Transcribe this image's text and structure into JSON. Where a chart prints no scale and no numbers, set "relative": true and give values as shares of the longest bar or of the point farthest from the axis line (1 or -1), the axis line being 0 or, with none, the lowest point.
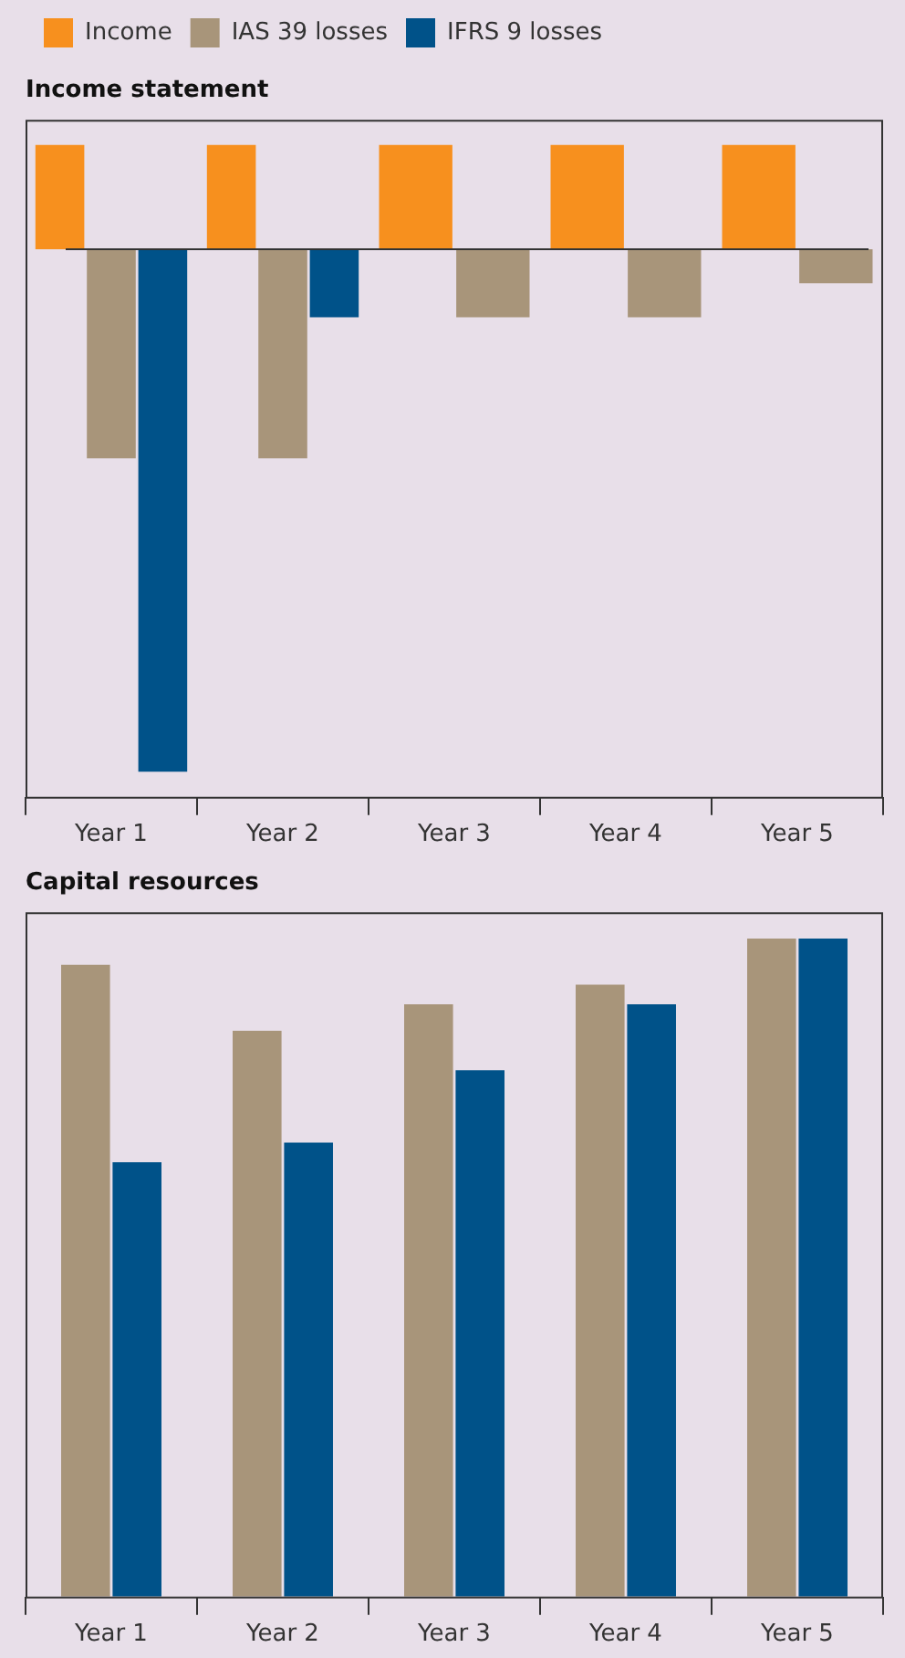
{
  "chart_data": [
    {
      "type": "bar",
      "title": "Income statement",
      "relative": true,
      "legend": "top left",
      "grid": false,
      "categories": [
        "Year 1",
        "Year 2",
        "Year 3",
        "Year 4",
        "Year 5"
      ],
      "series": [
        {
          "name": "Income",
          "color": "#f7901e",
          "values": [
            0.2,
            0.2,
            0.2,
            0.2,
            0.2
          ]
        },
        {
          "name": "IAS 39 losses",
          "color": "#a8957a",
          "values": [
            -0.4,
            -0.4,
            -0.13,
            -0.13,
            -0.065
          ]
        },
        {
          "name": "IFRS 9 losses",
          "color": "#005289",
          "values": [
            -1,
            -0.13,
            null,
            null,
            null
          ]
        }
      ]
    },
    {
      "type": "bar",
      "title": "Capital resources",
      "relative": true,
      "legend": false,
      "grid": false,
      "categories": [
        "Year 1",
        "Year 2",
        "Year 3",
        "Year 4",
        "Year 5"
      ],
      "series": [
        {
          "color": "#a8957a",
          "values": [
            0.96,
            0.86,
            0.9,
            0.93,
            1
          ]
        },
        {
          "color": "#005289",
          "values": [
            0.66,
            0.69,
            0.8,
            0.9,
            1
          ]
        }
      ]
    }
  ]
}
